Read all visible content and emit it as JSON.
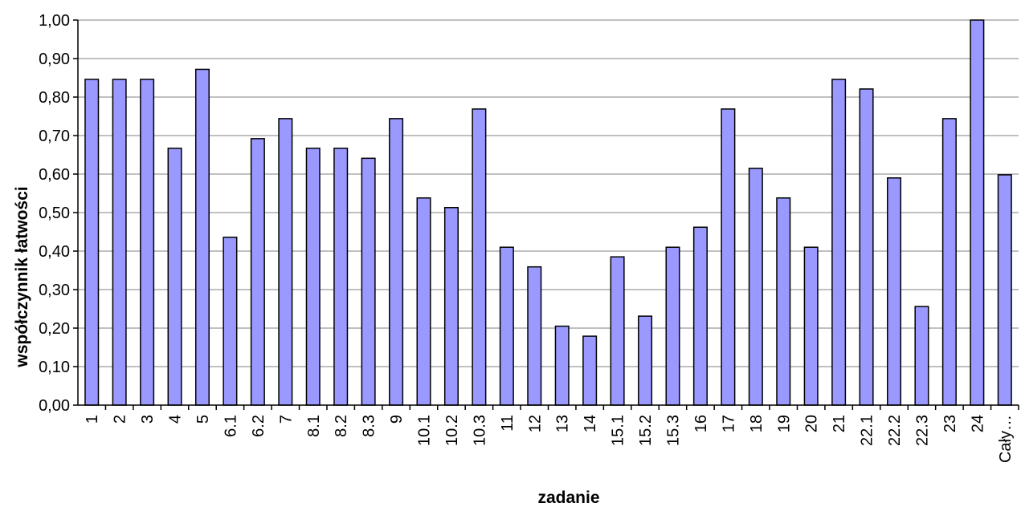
{
  "chart_data": {
    "type": "bar",
    "xlabel": "zadanie",
    "ylabel": "współczynnik łatwości",
    "ylim": [
      0,
      1
    ],
    "ytick_step": 0.1,
    "ytick_labels": [
      "0,00",
      "0,10",
      "0,20",
      "0,30",
      "0,40",
      "0,50",
      "0,60",
      "0,70",
      "0,80",
      "0,90",
      "1,00"
    ],
    "grid": true,
    "categories": [
      "1",
      "2",
      "3",
      "4",
      "5",
      "6.1",
      "6.2",
      "7",
      "8.1",
      "8.2",
      "8.3",
      "9",
      "10.1",
      "10.2",
      "10.3",
      "11",
      "12",
      "13",
      "14",
      "15.1",
      "15.2",
      "15.3",
      "16",
      "17",
      "18",
      "19",
      "20",
      "21",
      "22.1",
      "22.2",
      "22.3",
      "23",
      "24",
      "Cały…"
    ],
    "values": [
      0.846,
      0.846,
      0.846,
      0.667,
      0.872,
      0.436,
      0.692,
      0.744,
      0.667,
      0.667,
      0.641,
      0.744,
      0.538,
      0.513,
      0.769,
      0.41,
      0.359,
      0.205,
      0.179,
      0.385,
      0.231,
      0.41,
      0.462,
      0.769,
      0.615,
      0.538,
      0.41,
      0.846,
      0.821,
      0.59,
      0.256,
      0.744,
      1.0,
      0.598
    ],
    "bar_color": "#9999ff"
  }
}
